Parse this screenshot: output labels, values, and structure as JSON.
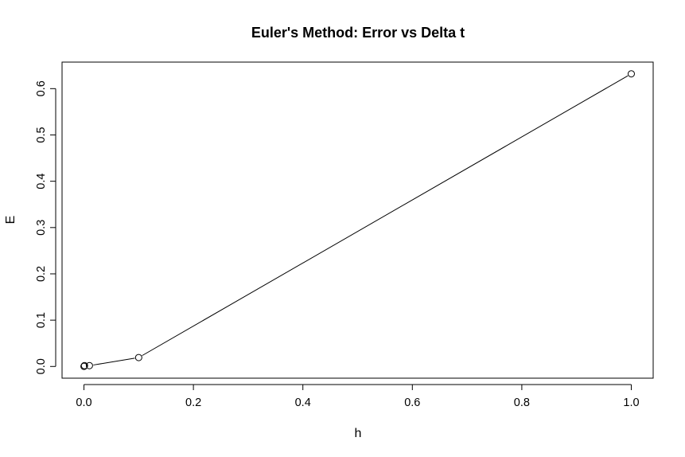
{
  "chart_data": {
    "type": "line",
    "title": "Euler's Method: Error vs Delta t",
    "xlabel": "h",
    "ylabel": "E",
    "xlim": [
      -0.04,
      1.04
    ],
    "ylim": [
      -0.0253,
      0.6573
    ],
    "x_ticks": [
      0.0,
      0.2,
      0.4,
      0.6,
      0.8,
      1.0
    ],
    "x_tick_labels": [
      "0.0",
      "0.2",
      "0.4",
      "0.6",
      "0.8",
      "1.0"
    ],
    "y_ticks": [
      0.0,
      0.1,
      0.2,
      0.3,
      0.4,
      0.5,
      0.6
    ],
    "y_tick_labels": [
      "0.0",
      "0.1",
      "0.2",
      "0.3",
      "0.4",
      "0.5",
      "0.6"
    ],
    "grid": false,
    "markers": "open-circle",
    "series": [
      {
        "x": [
          0.0001,
          0.001,
          0.01,
          0.1,
          1.0
        ],
        "y": [
          0.00018,
          0.0018,
          0.0018,
          0.0192,
          0.632
        ]
      }
    ]
  }
}
